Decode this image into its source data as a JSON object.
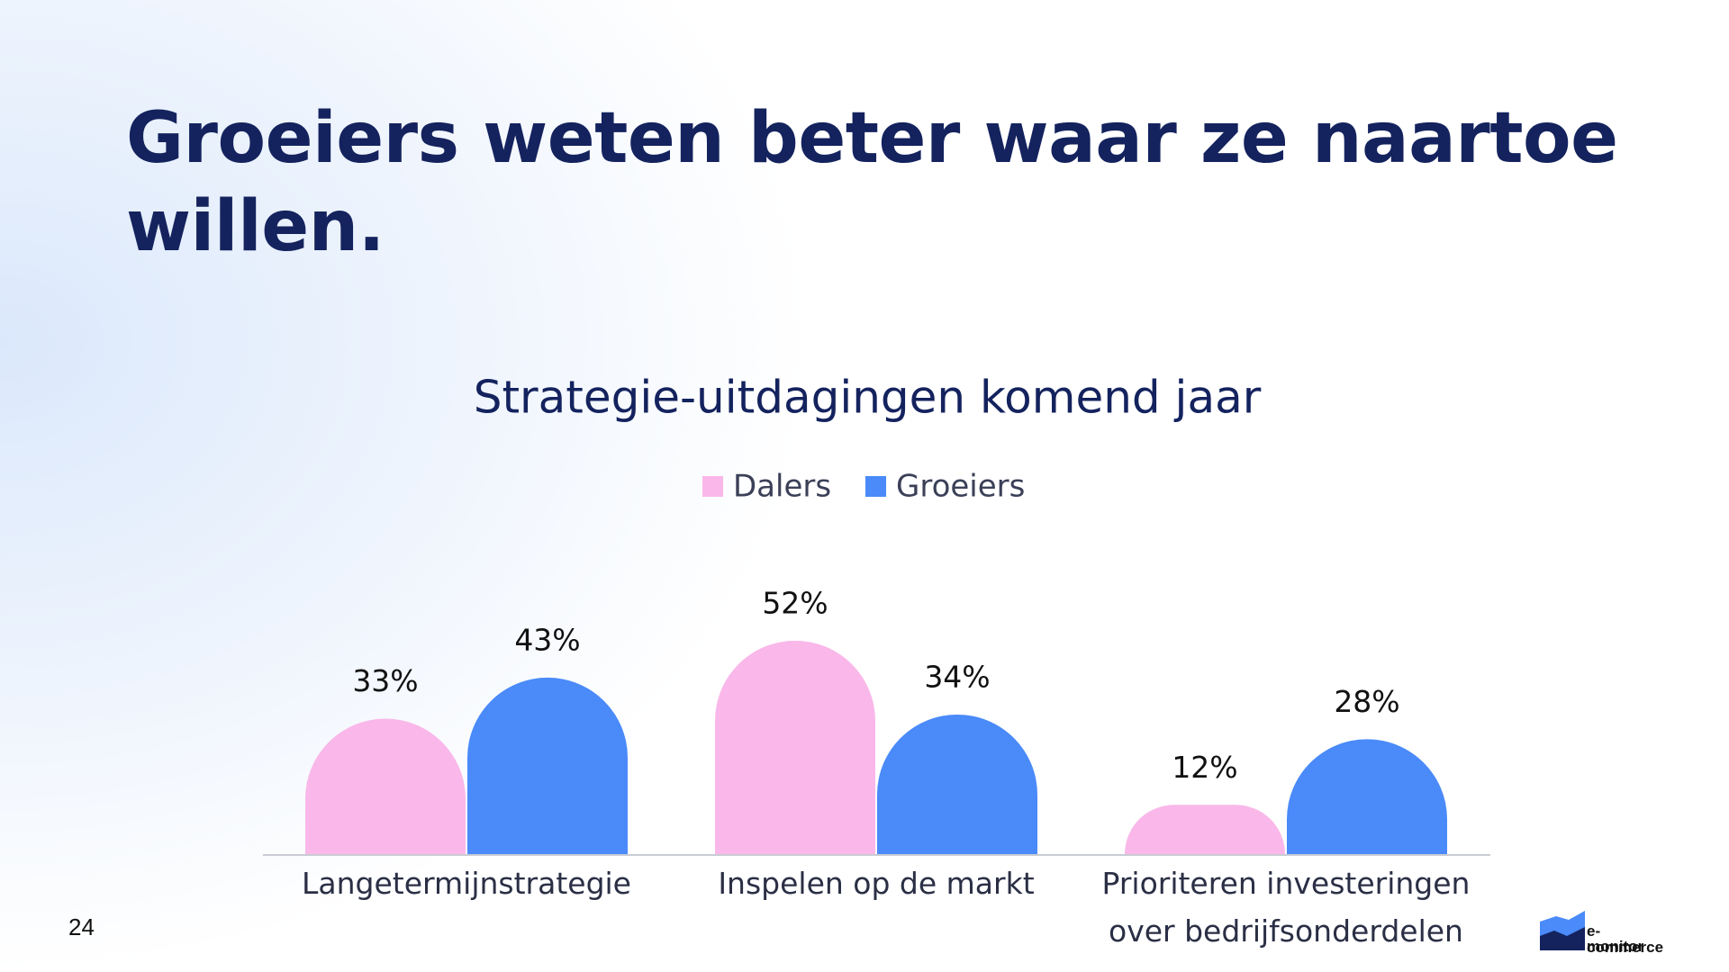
{
  "heading": "Groeiers weten beter waar ze naartoe willen.",
  "page_number": "24",
  "logo": {
    "line1": "e-commerce",
    "line2": "monitor"
  },
  "chart_data": {
    "type": "bar",
    "title": "Strategie-uitdagingen komend jaar",
    "categories": [
      "Langetermijnstrategie",
      "Inspelen op de markt",
      "Prioriteren investeringen over bedrijfsonderdelen"
    ],
    "series": [
      {
        "name": "Dalers",
        "color": "#f9b8e9",
        "values": [
          33,
          52,
          12
        ],
        "value_labels": [
          "33%",
          "52%",
          "12%"
        ]
      },
      {
        "name": "Groeiers",
        "color": "#4a8af9",
        "values": [
          43,
          34,
          28
        ],
        "value_labels": [
          "43%",
          "34%",
          "28%"
        ]
      }
    ],
    "legend": "top"
  }
}
